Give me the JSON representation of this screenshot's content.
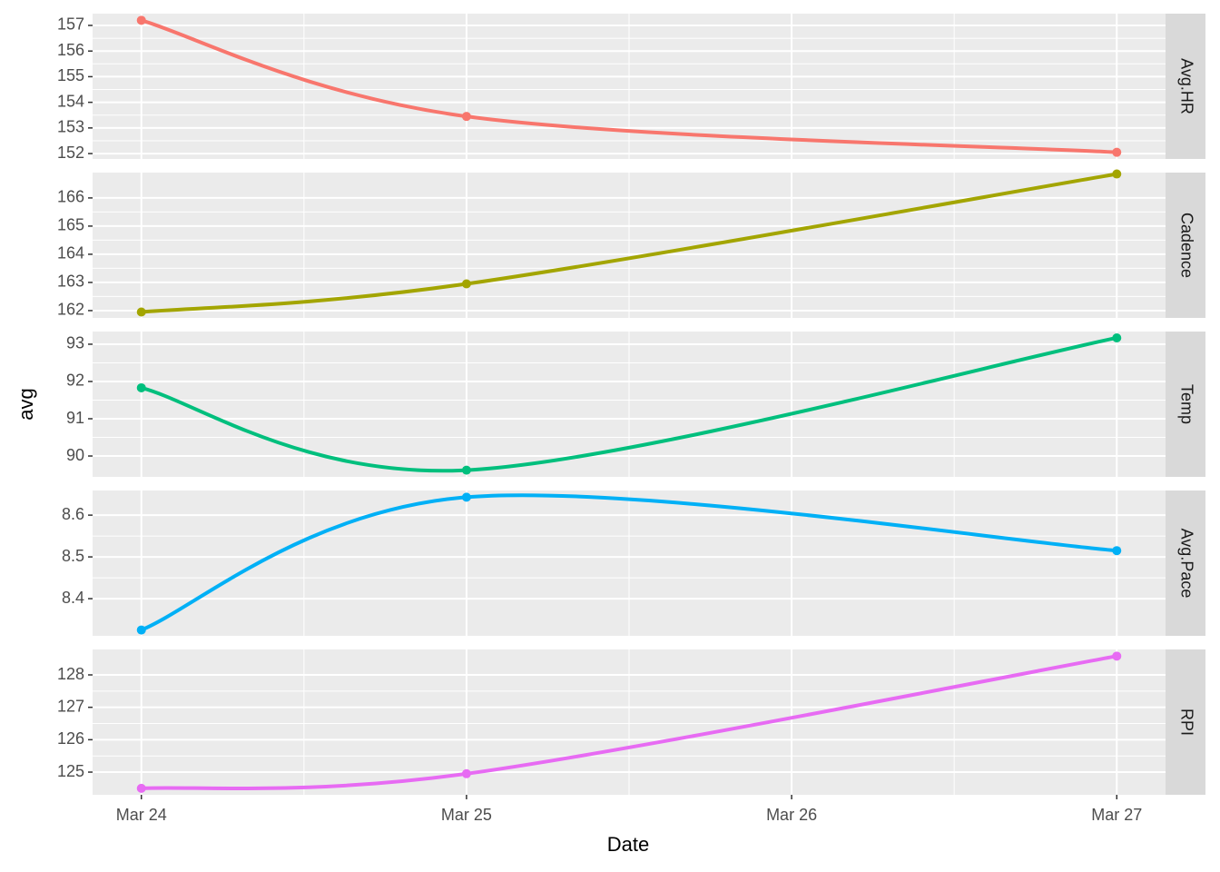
{
  "chart_data": [
    {
      "type": "line",
      "x": [
        "Mar 24",
        "Mar 25",
        "Mar 27"
      ],
      "xticks": [
        "Mar 24",
        "Mar 25",
        "Mar 26",
        "Mar 27"
      ],
      "series": [
        {
          "name": "Avg.HR",
          "color": "#F8766D",
          "values": [
            157.2,
            153.45,
            152.05
          ]
        }
      ],
      "ylim": [
        151.79,
        157.46
      ],
      "yticks": [
        152,
        153,
        154,
        155,
        156,
        157
      ],
      "grid": true
    },
    {
      "type": "line",
      "x": [
        "Mar 24",
        "Mar 25",
        "Mar 27"
      ],
      "xticks": [
        "Mar 24",
        "Mar 25",
        "Mar 26",
        "Mar 27"
      ],
      "series": [
        {
          "name": "Cadence",
          "color": "#A3A500",
          "values": [
            161.95,
            162.95,
            166.85
          ]
        }
      ],
      "ylim": [
        161.74,
        166.9
      ],
      "yticks": [
        162,
        163,
        164,
        165,
        166
      ],
      "grid": true
    },
    {
      "type": "line",
      "x": [
        "Mar 24",
        "Mar 25",
        "Mar 27"
      ],
      "xticks": [
        "Mar 24",
        "Mar 25",
        "Mar 26",
        "Mar 27"
      ],
      "series": [
        {
          "name": "Temp",
          "color": "#00BF7D",
          "values": [
            91.83,
            89.62,
            93.17
          ]
        }
      ],
      "ylim": [
        89.44,
        93.34
      ],
      "yticks": [
        90,
        91,
        92,
        93
      ],
      "grid": true
    },
    {
      "type": "line",
      "x": [
        "Mar 24",
        "Mar 25",
        "Mar 27"
      ],
      "xticks": [
        "Mar 24",
        "Mar 25",
        "Mar 26",
        "Mar 27"
      ],
      "series": [
        {
          "name": "Avg.Pace",
          "color": "#00B0F6",
          "values": [
            8.325,
            8.643,
            8.515
          ]
        }
      ],
      "ylim": [
        8.311,
        8.659
      ],
      "yticks": [
        8.4,
        8.5,
        8.6
      ],
      "grid": true
    },
    {
      "type": "line",
      "x": [
        "Mar 24",
        "Mar 25",
        "Mar 27"
      ],
      "xticks": [
        "Mar 24",
        "Mar 25",
        "Mar 26",
        "Mar 27"
      ],
      "series": [
        {
          "name": "RPI",
          "color": "#E76BF3",
          "values": [
            124.5,
            124.95,
            128.58
          ]
        }
      ],
      "ylim": [
        124.3,
        128.785
      ],
      "yticks": [
        125,
        126,
        127,
        128
      ],
      "grid": true
    }
  ],
  "xlabel": "Date",
  "ylabel": "avg"
}
